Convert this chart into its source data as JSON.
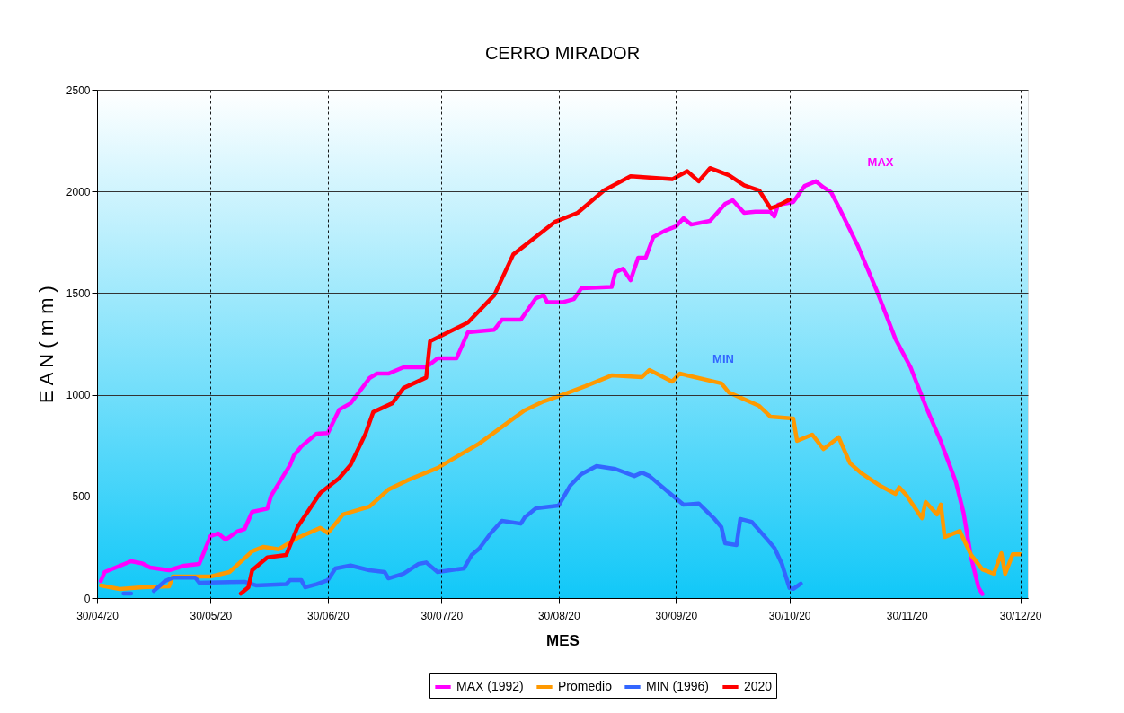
{
  "chart_data": {
    "type": "line",
    "title": "CERRO MIRADOR",
    "xlabel": "MES",
    "ylabel": "E A N  ( m m )",
    "xlim": [
      "2020-04-30",
      "2021-01-01"
    ],
    "xticks": [
      {
        "value": "2020-04-30",
        "label": "30/04/20"
      },
      {
        "value": "2020-05-30",
        "label": "30/05/20"
      },
      {
        "value": "2020-06-30",
        "label": "30/06/20"
      },
      {
        "value": "2020-07-30",
        "label": "30/07/20"
      },
      {
        "value": "2020-08-30",
        "label": "30/08/20"
      },
      {
        "value": "2020-09-30",
        "label": "30/09/20"
      },
      {
        "value": "2020-10-30",
        "label": "30/10/20"
      },
      {
        "value": "2020-11-30",
        "label": "30/11/20"
      },
      {
        "value": "2020-12-30",
        "label": "30/12/20"
      }
    ],
    "ylim": [
      0,
      2500
    ],
    "yticks": [
      0,
      500,
      1000,
      1500,
      2000,
      2500
    ],
    "grid": true,
    "legend": "bottom",
    "marker": "none",
    "line_style": "solid",
    "annotations": [
      "MAX",
      "MIN"
    ],
    "series": [
      {
        "name": "MAX (1992)",
        "color": "#ff00ff",
        "x": [
          "2020-05-01",
          "2020-05-02",
          "2020-05-09",
          "2020-05-12",
          "2020-05-14",
          "2020-05-19",
          "2020-05-23",
          "2020-05-27",
          "2020-05-30",
          "2020-06-01",
          "2020-06-03",
          "2020-06-06",
          "2020-06-08",
          "2020-06-10",
          "2020-06-14",
          "2020-06-15",
          "2020-06-20",
          "2020-06-21",
          "2020-06-23",
          "2020-06-27",
          "2020-06-30",
          "2020-07-03",
          "2020-07-06",
          "2020-07-08",
          "2020-07-11",
          "2020-07-13",
          "2020-07-16",
          "2020-07-20",
          "2020-07-26",
          "2020-07-29",
          "2020-08-03",
          "2020-08-06",
          "2020-08-13",
          "2020-08-15",
          "2020-08-20",
          "2020-08-24",
          "2020-08-26",
          "2020-08-27",
          "2020-08-31",
          "2020-09-03",
          "2020-09-05",
          "2020-09-13",
          "2020-09-14",
          "2020-09-16",
          "2020-09-18",
          "2020-09-20",
          "2020-09-22",
          "2020-09-24",
          "2020-09-27",
          "2020-09-30",
          "2020-10-02",
          "2020-10-04",
          "2020-10-09",
          "2020-10-13",
          "2020-10-15",
          "2020-10-18",
          "2020-10-21",
          "2020-10-25",
          "2020-10-26",
          "2020-10-27",
          "2020-10-31",
          "2020-11-03",
          "2020-11-06",
          "2020-11-08",
          "2020-11-10",
          "2020-11-12",
          "2020-11-17",
          "2020-11-22",
          "2020-11-27",
          "2020-12-01",
          "2020-12-05",
          "2020-12-09",
          "2020-12-13",
          "2020-12-15",
          "2020-12-17",
          "2020-12-19",
          "2020-12-20"
        ],
        "values": [
          84,
          128,
          181,
          170,
          150,
          137,
          159,
          168,
          305,
          318,
          287,
          327,
          340,
          424,
          440,
          503,
          654,
          700,
          746,
          808,
          812,
          927,
          958,
          1007,
          1082,
          1104,
          1104,
          1135,
          1135,
          1179,
          1179,
          1307,
          1320,
          1369,
          1369,
          1475,
          1490,
          1455,
          1455,
          1470,
          1524,
          1530,
          1603,
          1620,
          1563,
          1674,
          1674,
          1776,
          1806,
          1828,
          1868,
          1837,
          1855,
          1939,
          1957,
          1895,
          1900,
          1900,
          1877,
          1935,
          1948,
          2027,
          2050,
          2020,
          1996,
          1925,
          1735,
          1515,
          1275,
          1135,
          945,
          770,
          570,
          420,
          200,
          50,
          20
        ]
      },
      {
        "name": "Promedio",
        "color": "#ff9900",
        "x": [
          "2020-05-01",
          "2020-05-06",
          "2020-05-12",
          "2020-05-19",
          "2020-05-20",
          "2020-05-30",
          "2020-06-04",
          "2020-06-10",
          "2020-06-13",
          "2020-06-17",
          "2020-06-22",
          "2020-06-28",
          "2020-06-30",
          "2020-07-04",
          "2020-07-11",
          "2020-07-16",
          "2020-07-21",
          "2020-07-29",
          "2020-08-02",
          "2020-08-09",
          "2020-08-18",
          "2020-08-21",
          "2020-08-26",
          "2020-09-01",
          "2020-09-06",
          "2020-09-13",
          "2020-09-21",
          "2020-09-23",
          "2020-09-29",
          "2020-10-01",
          "2020-10-12",
          "2020-10-14",
          "2020-10-22",
          "2020-10-25",
          "2020-10-31",
          "2020-11-01",
          "2020-11-05",
          "2020-11-08",
          "2020-11-12",
          "2020-11-15",
          "2020-11-18",
          "2020-11-23",
          "2020-11-27",
          "2020-11-28",
          "2020-11-30",
          "2020-12-04",
          "2020-12-05",
          "2020-12-08",
          "2020-12-09",
          "2020-12-10",
          "2020-12-14",
          "2020-12-17",
          "2020-12-20",
          "2020-12-23",
          "2020-12-25",
          "2020-12-26",
          "2020-12-28",
          "2020-12-30"
        ],
        "values": [
          62,
          44,
          53,
          57,
          106,
          106,
          128,
          230,
          252,
          240,
          296,
          345,
          320,
          411,
          450,
          534,
          579,
          640,
          684,
          760,
          883,
          923,
          967,
          1007,
          1042,
          1095,
          1087,
          1122,
          1065,
          1104,
          1056,
          1011,
          945,
          892,
          883,
          773,
          804,
          733,
          791,
          663,
          614,
          552,
          512,
          545,
          504,
          393,
          473,
          411,
          460,
          300,
          330,
          212,
          141,
          120,
          221,
          119,
          215,
          215
        ]
      },
      {
        "name": "MIN (1996)",
        "color": "#3366ff",
        "x": [
          "2020-05-07",
          "2020-05-09",
          "2020-05-12",
          "2020-05-15",
          "2020-05-18",
          "2020-05-20",
          "2020-05-26",
          "2020-05-27",
          "2020-06-08",
          "2020-06-11",
          "2020-06-19",
          "2020-06-20",
          "2020-06-23",
          "2020-06-24",
          "2020-06-27",
          "2020-06-30",
          "2020-07-02",
          "2020-07-06",
          "2020-07-11",
          "2020-07-15",
          "2020-07-16",
          "2020-07-20",
          "2020-07-24",
          "2020-07-26",
          "2020-07-29",
          "2020-08-05",
          "2020-08-07",
          "2020-08-09",
          "2020-08-12",
          "2020-08-15",
          "2020-08-20",
          "2020-08-21",
          "2020-08-24",
          "2020-08-30",
          "2020-09-02",
          "2020-09-05",
          "2020-09-09",
          "2020-09-14",
          "2020-09-19",
          "2020-09-21",
          "2020-09-23",
          "2020-09-28",
          "2020-10-02",
          "2020-10-06",
          "2020-10-10",
          "2020-10-12",
          "2020-10-13",
          "2020-10-16",
          "2020-10-17",
          "2020-10-20",
          "2020-10-24",
          "2020-10-26",
          "2020-10-28",
          "2020-10-30",
          "2020-10-31",
          "2020-11-02"
        ],
        "values": [
          22,
          22,
          null,
          35,
          84,
          100,
          100,
          75,
          80,
          62,
          68,
          88,
          88,
          53,
          68,
          88,
          146,
          160,
          137,
          128,
          97,
          120,
          168,
          175,
          128,
          146,
          212,
          243,
          318,
          380,
          366,
          396,
          442,
          455,
          552,
          610,
          649,
          635,
          600,
          617,
          600,
          521,
          459,
          465,
          393,
          349,
          269,
          261,
          389,
          375,
          291,
          247,
          168,
          49,
          45,
          71
        ]
      },
      {
        "name": "2020",
        "color": "#ff0000",
        "x": [
          "2020-06-07",
          "2020-06-09",
          "2020-06-10",
          "2020-06-14",
          "2020-06-19",
          "2020-06-22",
          "2020-06-28",
          "2020-07-03",
          "2020-07-06",
          "2020-07-10",
          "2020-07-12",
          "2020-07-17",
          "2020-07-20",
          "2020-07-26",
          "2020-07-27",
          "2020-08-06",
          "2020-08-13",
          "2020-08-18",
          "2020-08-29",
          "2020-09-04",
          "2020-09-11",
          "2020-09-18",
          "2020-09-29",
          "2020-10-03",
          "2020-10-06",
          "2020-10-09",
          "2020-10-14",
          "2020-10-18",
          "2020-10-22",
          "2020-10-25",
          "2020-10-27",
          "2020-10-30"
        ],
        "values": [
          22,
          53,
          137,
          200,
          212,
          350,
          517,
          590,
          655,
          810,
          915,
          958,
          1033,
          1085,
          1263,
          1355,
          1490,
          1690,
          1850,
          1895,
          2005,
          2075,
          2060,
          2100,
          2050,
          2115,
          2080,
          2030,
          2005,
          1917,
          1930,
          1960
        ]
      }
    ]
  }
}
